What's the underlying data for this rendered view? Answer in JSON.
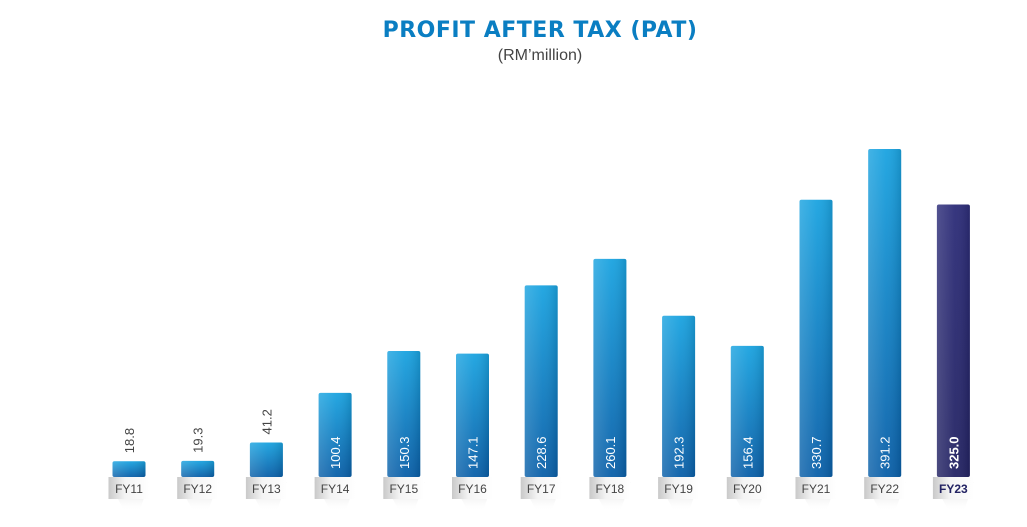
{
  "chart_data": {
    "type": "bar",
    "title": "PROFIT AFTER TAX (PAT)",
    "subtitle": "(RM’million)",
    "categories": [
      "FY11",
      "FY12",
      "FY13",
      "FY14",
      "FY15",
      "FY16",
      "FY17",
      "FY18",
      "FY19",
      "FY20",
      "FY21",
      "FY22",
      "FY23"
    ],
    "values": [
      18.8,
      19.3,
      41.2,
      100.4,
      150.3,
      147.1,
      228.6,
      260.1,
      192.3,
      156.4,
      330.7,
      391.2,
      325.0
    ],
    "value_labels": [
      "18.8",
      "19.3",
      "41.2",
      "100.4",
      "150.3",
      "147.1",
      "228.6",
      "260.1",
      "192.3",
      "156.4",
      "330.7",
      "391.2",
      "325.0"
    ],
    "highlight_category": "FY23",
    "colors": {
      "bar_light": "#1aa3e0",
      "bar_dark": "#0a5fa8",
      "highlight_light": "#2c2c78",
      "highlight_dark": "#232363",
      "title": "#0a7ec2",
      "label_text": "#444444",
      "highlight_text": "#232363"
    },
    "xlabel": "",
    "ylabel": "",
    "ylim": [
      0,
      391.2
    ],
    "grid": false,
    "legend": "none"
  }
}
